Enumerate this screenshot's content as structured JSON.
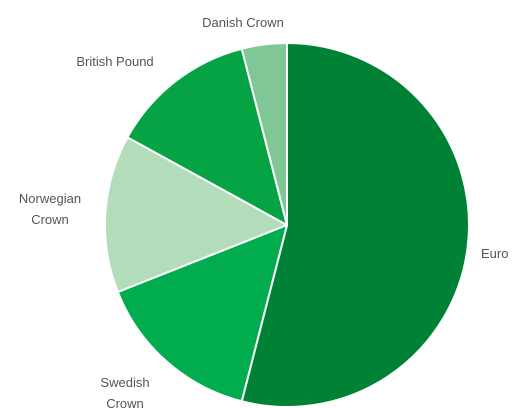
{
  "chart_data": {
    "type": "pie",
    "title": "",
    "slices": [
      {
        "label": "Euro",
        "value": 54,
        "color": "#008236"
      },
      {
        "label": "Swedish Crown",
        "value": 15,
        "color": "#00ac4e"
      },
      {
        "label": "Norwegian Crown",
        "value": 14,
        "color": "#b3dcbb"
      },
      {
        "label": "British Pound",
        "value": 13,
        "color": "#05a344"
      },
      {
        "label": "Danish Crown",
        "value": 4,
        "color": "#7fc794"
      }
    ],
    "label_lines": [
      [
        "Euro"
      ],
      [
        "Swedish",
        "Crown"
      ],
      [
        "Norwegian",
        "Crown"
      ],
      [
        "British Pound"
      ],
      [
        "Danish Crown"
      ]
    ],
    "start_angle_deg": 0,
    "direction": "clockwise",
    "legend": "none"
  }
}
